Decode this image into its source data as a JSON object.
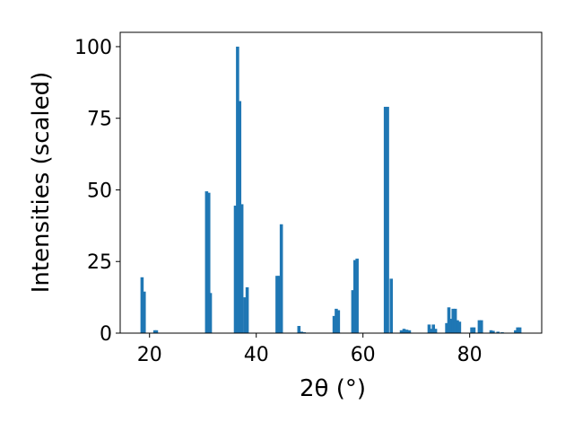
{
  "chart_data": {
    "type": "bar",
    "xlabel": "2θ (°)",
    "ylabel": "Intensities (scaled)",
    "xlim": [
      14.5,
      93.5
    ],
    "ylim": [
      0,
      105
    ],
    "xticks": [
      20,
      40,
      60,
      80
    ],
    "yticks": [
      0,
      25,
      50,
      75,
      100
    ],
    "grid": false,
    "bar_color": "#1f77b4",
    "bar_width": 0.6,
    "x": [
      18.6,
      19.0,
      21.0,
      21.3,
      30.7,
      31.1,
      31.4,
      36.1,
      36.5,
      36.9,
      37.3,
      37.9,
      38.3,
      43.9,
      44.3,
      44.7,
      48.0,
      48.5,
      49.0,
      54.6,
      55.0,
      55.4,
      58.1,
      58.5,
      58.9,
      64.2,
      64.6,
      65.3,
      67.2,
      67.7,
      68.2,
      68.7,
      72.4,
      72.8,
      73.2,
      73.6,
      75.7,
      76.1,
      76.5,
      76.9,
      77.3,
      77.7,
      78.1,
      80.4,
      80.8,
      81.8,
      82.2,
      84.0,
      84.4,
      85.3,
      86.1,
      88.6,
      89.0,
      89.4
    ],
    "values": [
      19.5,
      14.5,
      1.0,
      1.0,
      49.5,
      49.0,
      14.0,
      44.5,
      100,
      81.0,
      45.0,
      12.5,
      16.0,
      20.0,
      20.0,
      38.0,
      2.5,
      0.5,
      0.3,
      6.0,
      8.5,
      8.0,
      15.0,
      25.5,
      26.0,
      79.0,
      79.0,
      19.0,
      1.0,
      1.5,
      1.2,
      1.0,
      3.0,
      1.5,
      3.0,
      1.5,
      3.5,
      9.0,
      5.0,
      8.5,
      8.5,
      4.5,
      4.0,
      2.0,
      2.0,
      4.5,
      4.5,
      1.0,
      0.8,
      0.5,
      0.3,
      1.0,
      2.0,
      2.0
    ]
  }
}
